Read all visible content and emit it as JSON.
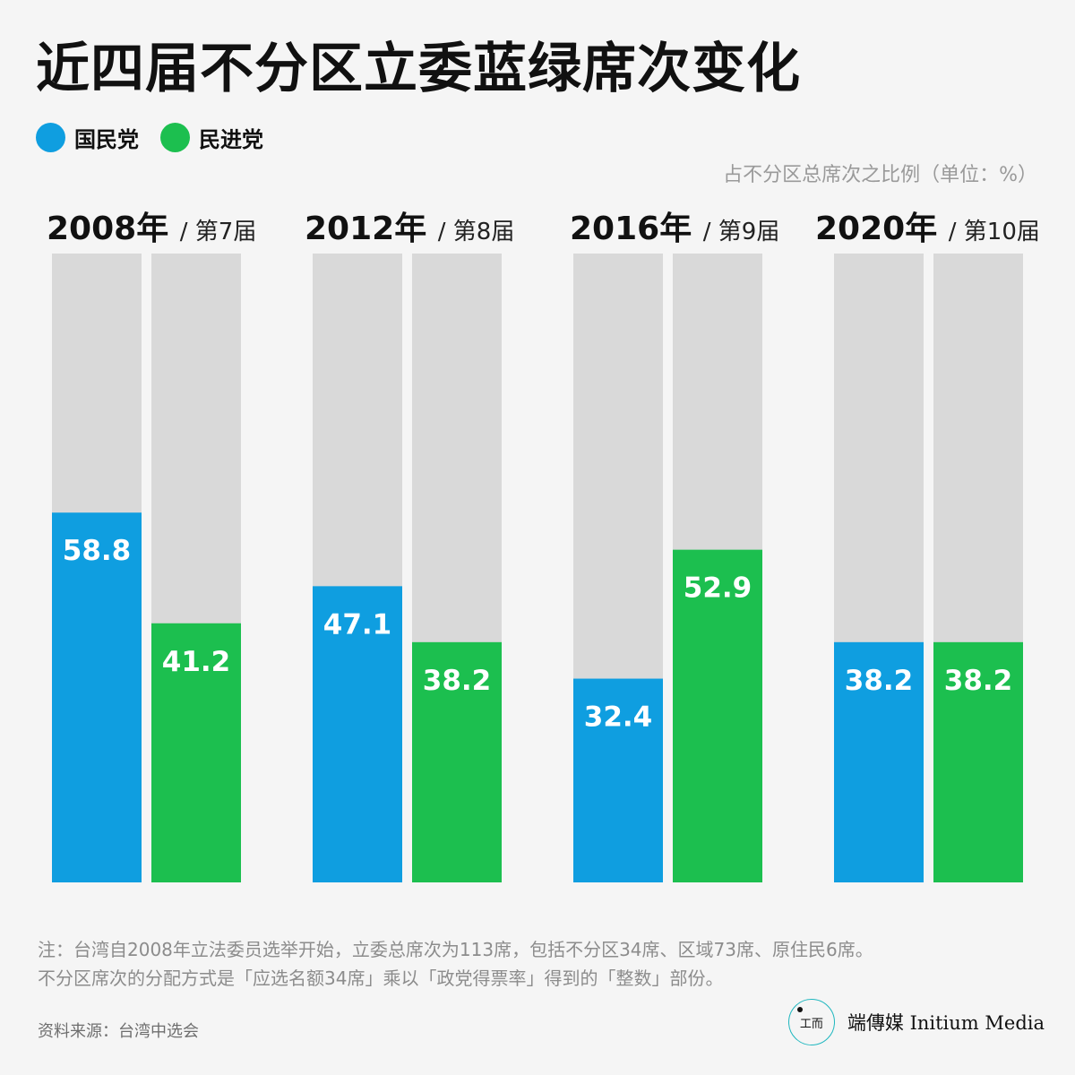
{
  "title": "近四届不分区立委蓝绿席次变化",
  "legend": [
    {
      "label": "国民党",
      "color": "#0f9ee0"
    },
    {
      "label": "民进党",
      "color": "#1cbf4f"
    }
  ],
  "unit_note": "占不分区总席次之比例（单位：%）",
  "chart_data": {
    "type": "bar",
    "ylim": [
      0,
      100
    ],
    "background_color": "#d9d9d9",
    "groups": [
      {
        "year": "2008年",
        "session": "/ 第7届",
        "values": [
          58.8,
          41.2
        ],
        "labels": [
          "58.8",
          "41.2"
        ]
      },
      {
        "year": "2012年",
        "session": "/ 第8届",
        "values": [
          47.1,
          38.2
        ],
        "labels": [
          "47.1",
          "38.2"
        ]
      },
      {
        "year": "2016年",
        "session": "/ 第9届",
        "values": [
          32.4,
          52.9
        ],
        "labels": [
          "32.4",
          "52.9"
        ]
      },
      {
        "year": "2020年",
        "session": "/ 第10届",
        "values": [
          38.2,
          38.2
        ],
        "labels": [
          "38.2",
          "38.2"
        ]
      }
    ],
    "series": [
      {
        "name": "国民党",
        "color": "#0f9ee0"
      },
      {
        "name": "民进党",
        "color": "#1cbf4f"
      }
    ]
  },
  "note_lines": [
    "注：台湾自2008年立法委员选举开始，立委总席次为113席，包括不分区34席、区域73席、原住民6席。",
    "不分区席次的分配方式是「应选名额34席」乘以「政党得票率」得到的「整数」部份。"
  ],
  "source": "资料来源：台湾中选会",
  "brand": {
    "logo_text": "工而",
    "name": "端傳媒 Initium Media"
  }
}
